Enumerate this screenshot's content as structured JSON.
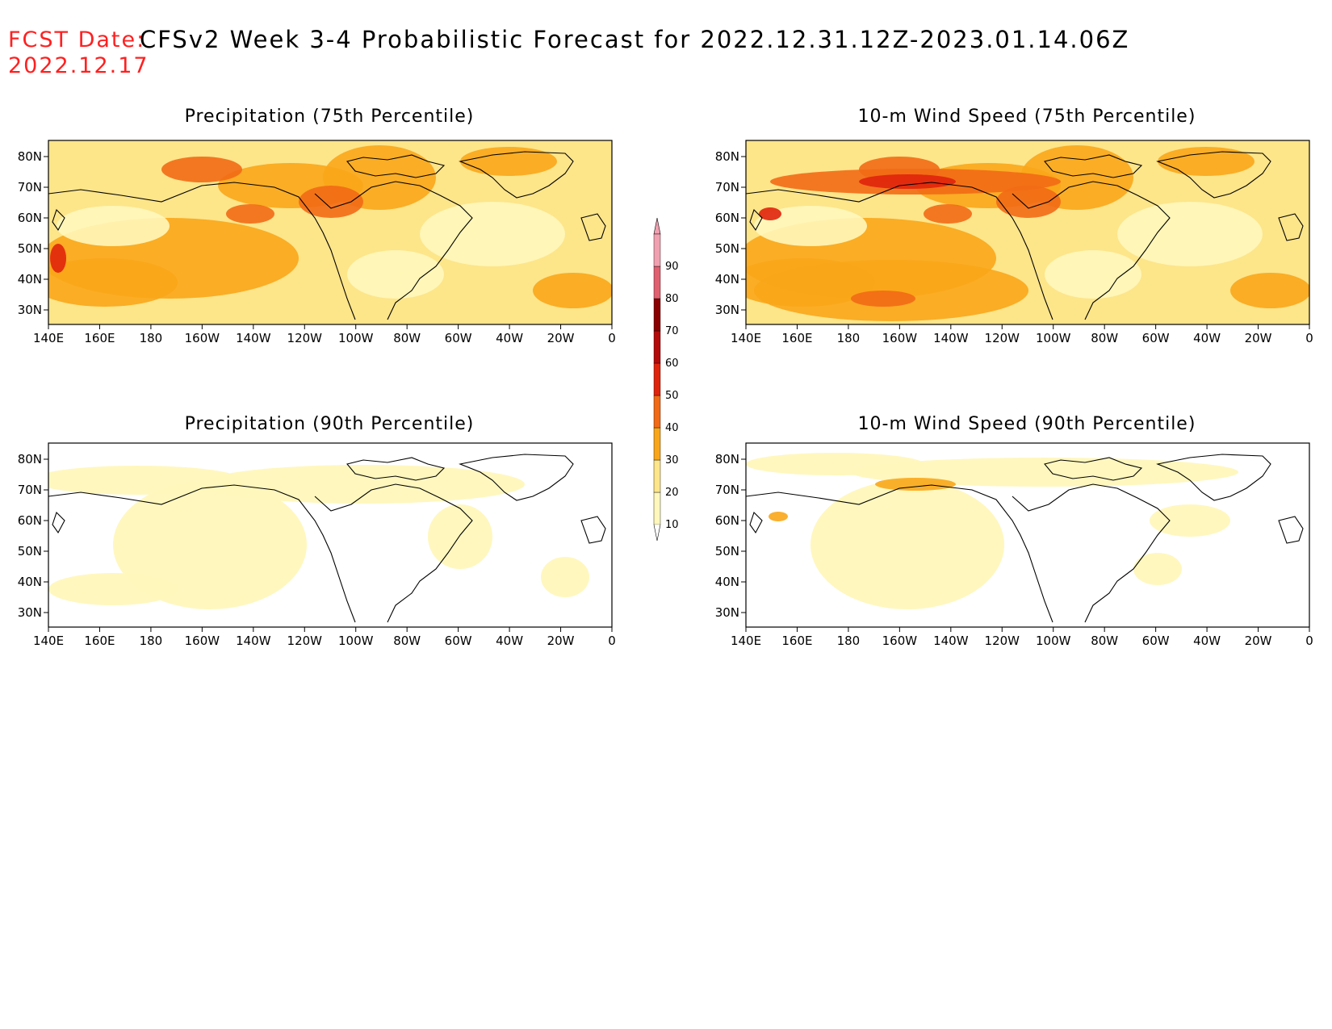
{
  "header": {
    "fcst_label": "FCST Date:",
    "fcst_date": "2022.12.17",
    "title": "CFSv2 Week 3-4 Probabilistic Forecast for 2022.12.31.12Z-2023.01.14.06Z"
  },
  "axes": {
    "x_ticks": [
      "140E",
      "160E",
      "180",
      "160W",
      "140W",
      "120W",
      "100W",
      "80W",
      "60W",
      "40W",
      "20W",
      "0"
    ],
    "y_ticks": [
      "80N",
      "70N",
      "60N",
      "50N",
      "40N",
      "30N"
    ]
  },
  "panels": [
    {
      "id": "precip75",
      "title": "Precipitation (75th Percentile)",
      "level": "high"
    },
    {
      "id": "wind75",
      "title": "10-m Wind Speed (75th Percentile)",
      "level": "high"
    },
    {
      "id": "precip90",
      "title": "Precipitation (90th Percentile)",
      "level": "low"
    },
    {
      "id": "wind90",
      "title": "10-m Wind Speed (90th Percentile)",
      "level": "low"
    }
  ],
  "colorbar": {
    "labels": [
      "10",
      "20",
      "30",
      "40",
      "50",
      "60",
      "70",
      "80",
      "90"
    ],
    "colors": [
      "#fff7bb",
      "#fde58a",
      "#f9a61a",
      "#f26a15",
      "#e0240c",
      "#b40a0a",
      "#8a0000",
      "#e06070",
      "#f0a0b0"
    ]
  }
}
